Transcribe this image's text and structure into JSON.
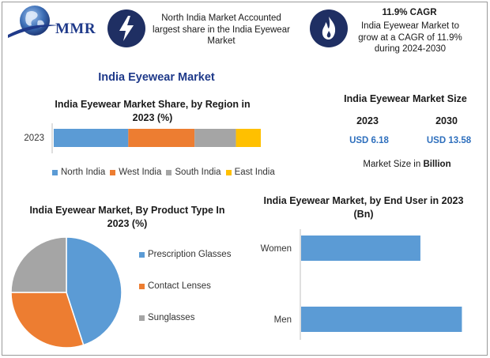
{
  "brand": {
    "logo_text": "MMR"
  },
  "header": {
    "callout1": {
      "icon": "lightning-icon",
      "text": "North India Market Accounted largest share in the India Eyewear Market"
    },
    "callout2": {
      "icon": "flame-icon",
      "title": "11.9% CAGR",
      "text": "India Eyewear Market to grow at a CAGR of 11.9% during 2024-2030"
    }
  },
  "main_title": "India Eyewear Market",
  "market_size": {
    "title": "India Eyewear Market Size",
    "years": [
      "2023",
      "2030"
    ],
    "values": [
      "USD 6.18",
      "USD 13.58"
    ],
    "unit_label": "Market Size in Billion"
  },
  "colors": {
    "north": "#5b9bd5",
    "west": "#ed7d31",
    "south": "#a5a5a5",
    "east": "#ffc000",
    "navy": "#1f2f63",
    "title_blue": "#1f3a8a"
  },
  "chart_data": [
    {
      "type": "bar",
      "orientation": "horizontal",
      "stacked": true,
      "title": "India Eyewear Market Share, by Region in 2023 (%)",
      "categories": [
        "2023"
      ],
      "series": [
        {
          "name": "North India",
          "values": [
            36
          ],
          "color": "#5b9bd5"
        },
        {
          "name": "West India",
          "values": [
            32
          ],
          "color": "#ed7d31"
        },
        {
          "name": "South India",
          "values": [
            20
          ],
          "color": "#a5a5a5"
        },
        {
          "name": "East India",
          "values": [
            12
          ],
          "color": "#ffc000"
        }
      ],
      "legend": "bottom",
      "grid": false
    },
    {
      "type": "pie",
      "title": "India Eyewear Market, By Product Type In 2023 (%)",
      "labels": [
        "Prescription Glasses",
        "Contact Lenses",
        "Sunglasses"
      ],
      "values": [
        45,
        30,
        25
      ],
      "colors": [
        "#5b9bd5",
        "#ed7d31",
        "#a5a5a5"
      ],
      "legend": "right"
    },
    {
      "type": "bar",
      "orientation": "horizontal",
      "title": "India Eyewear Market, by End User in 2023 (Bn)",
      "categories": [
        "Women",
        "Men"
      ],
      "values": [
        2.3,
        3.1
      ],
      "color": "#5b9bd5",
      "xlim": [
        0,
        3.2
      ],
      "grid": false
    }
  ]
}
